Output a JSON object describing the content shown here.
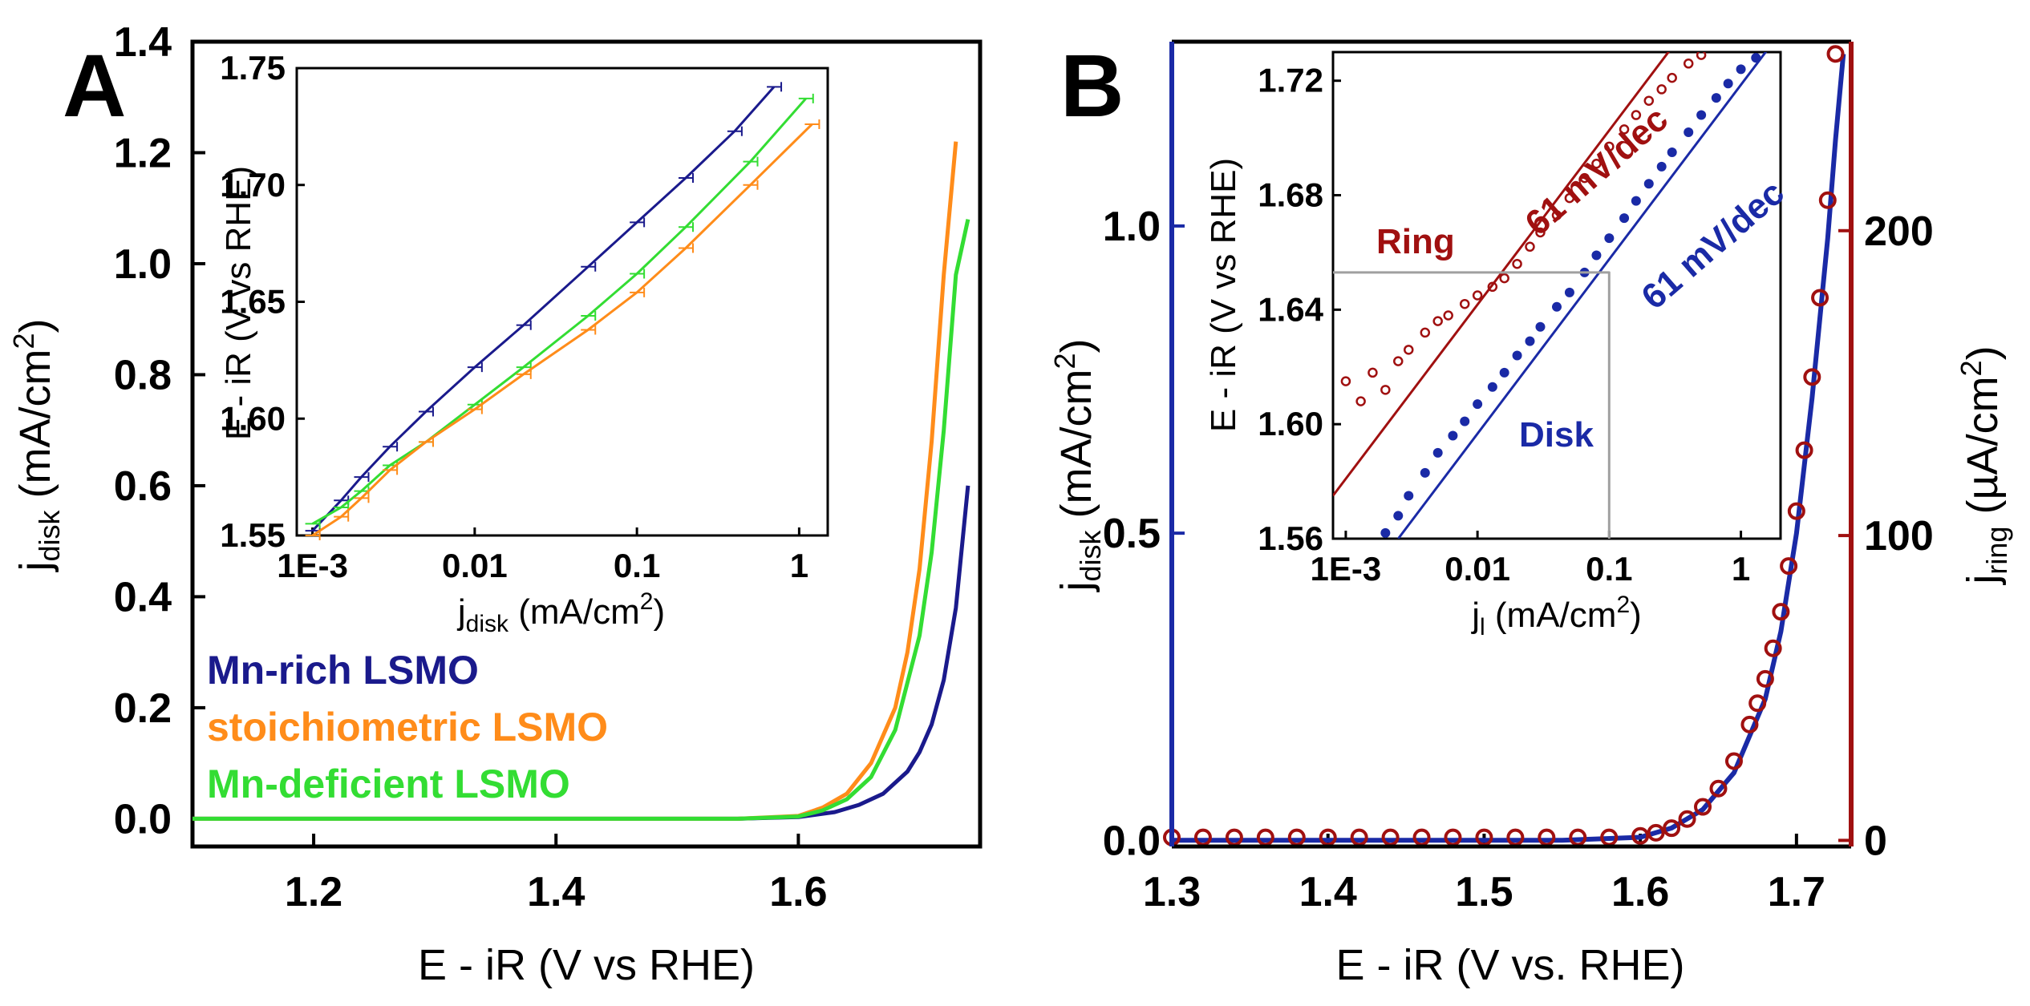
{
  "colors": {
    "mn_rich": "#1a1a8c",
    "stoich": "#ff8c1a",
    "mn_def": "#33dd33",
    "disk": "#1a2aa6",
    "ring": "#a01010",
    "guide": "#a0a0a0",
    "axis": "#000000"
  },
  "panel_a": {
    "label": "A",
    "xlabel": "E - iR (V vs RHE)",
    "ylabel_main": "j",
    "ylabel_sub": "disk",
    "ylabel_unit": " (mA/cm",
    "ylabel_sup": "2",
    "ylabel_close": ")",
    "legend": [
      "Mn-rich LSMO",
      "stoichiometric LSMO",
      "Mn-deficient LSMO"
    ],
    "inset": {
      "xlabel_main": "j",
      "xlabel_sub": "disk",
      "xlabel_unit": " (mA/cm",
      "xlabel_sup": "2",
      "xlabel_close": ")",
      "ylabel": "E - iR (V vs RHE)"
    }
  },
  "panel_b": {
    "label": "B",
    "xlabel": "E - iR (V vs. RHE)",
    "ylabel_left_main": "j",
    "ylabel_left_sub": "disk",
    "ylabel_left_unit": " (mA/cm",
    "ylabel_left_sup": "2",
    "ylabel_left_close": ")",
    "ylabel_right_main": "j",
    "ylabel_right_sub": "ring",
    "ylabel_right_unit": " (µA/cm",
    "ylabel_right_sup": "2",
    "ylabel_right_close": ")",
    "inset": {
      "xlabel_main": "j",
      "xlabel_sub": "l",
      "xlabel_unit": " (mA/cm",
      "xlabel_sup": "2",
      "xlabel_close": ")",
      "ylabel": "E - iR (V vs RHE)",
      "label_ring": "Ring",
      "label_disk": "Disk",
      "slope_ring": "61 mV/dec",
      "slope_disk": "61 mV/dec"
    }
  },
  "chart_data": [
    {
      "id": "A-main",
      "type": "line",
      "title": "",
      "xlabel": "E - iR (V vs RHE)",
      "ylabel": "j_disk (mA/cm^2)",
      "xlim": [
        1.1,
        1.75
      ],
      "ylim": [
        -0.05,
        1.4
      ],
      "xticks": [
        1.2,
        1.4,
        1.6
      ],
      "xtick_labels": [
        "1.2",
        "1.4",
        "1.6"
      ],
      "yticks": [
        0.0,
        0.2,
        0.4,
        0.6,
        0.8,
        1.0,
        1.2,
        1.4
      ],
      "ytick_labels": [
        "0.0",
        "0.2",
        "0.4",
        "0.6",
        "0.8",
        "1.0",
        "1.2",
        "1.4"
      ],
      "legend_position": "bottom-left",
      "series": [
        {
          "name": "Mn-rich LSMO",
          "color_key": "mn_rich",
          "x": [
            1.1,
            1.55,
            1.6,
            1.63,
            1.65,
            1.67,
            1.69,
            1.7,
            1.71,
            1.72,
            1.73,
            1.74
          ],
          "y": [
            0.0,
            0.0,
            0.003,
            0.012,
            0.025,
            0.045,
            0.085,
            0.12,
            0.17,
            0.25,
            0.38,
            0.6
          ]
        },
        {
          "name": "stoichiometric LSMO",
          "color_key": "stoich",
          "x": [
            1.1,
            1.55,
            1.6,
            1.62,
            1.64,
            1.66,
            1.68,
            1.69,
            1.7,
            1.71,
            1.72,
            1.73
          ],
          "y": [
            0.0,
            0.0,
            0.005,
            0.02,
            0.045,
            0.1,
            0.2,
            0.3,
            0.45,
            0.68,
            0.98,
            1.22
          ]
        },
        {
          "name": "Mn-deficient LSMO",
          "color_key": "mn_def",
          "x": [
            1.1,
            1.55,
            1.6,
            1.62,
            1.64,
            1.66,
            1.68,
            1.7,
            1.71,
            1.72,
            1.73,
            1.74
          ],
          "y": [
            0.0,
            0.0,
            0.004,
            0.015,
            0.035,
            0.075,
            0.16,
            0.33,
            0.48,
            0.7,
            0.98,
            1.08
          ]
        }
      ]
    },
    {
      "id": "A-inset",
      "type": "line",
      "title": "",
      "xlabel": "j_disk (mA/cm^2)",
      "ylabel": "E - iR (V vs RHE)",
      "xscale": "log",
      "xlim": [
        0.0008,
        1.5
      ],
      "ylim": [
        1.55,
        1.75
      ],
      "xticks": [
        0.001,
        0.01,
        0.1,
        1
      ],
      "xtick_labels": [
        "1E-3",
        "0.01",
        "0.1",
        "1"
      ],
      "yticks": [
        1.55,
        1.6,
        1.65,
        1.7,
        1.75
      ],
      "ytick_labels": [
        "1.55",
        "1.60",
        "1.65",
        "1.70",
        "1.75"
      ],
      "series": [
        {
          "name": "Mn-rich LSMO",
          "color_key": "mn_rich",
          "x": [
            0.001,
            0.0015,
            0.002,
            0.003,
            0.005,
            0.01,
            0.02,
            0.05,
            0.1,
            0.2,
            0.4,
            0.7
          ],
          "y": [
            1.552,
            1.565,
            1.575,
            1.588,
            1.603,
            1.622,
            1.64,
            1.665,
            1.684,
            1.703,
            1.723,
            1.742
          ]
        },
        {
          "name": "Mn-deficient LSMO",
          "color_key": "mn_def",
          "x": [
            0.001,
            0.0015,
            0.002,
            0.003,
            0.005,
            0.01,
            0.02,
            0.05,
            0.1,
            0.2,
            0.5,
            1.1
          ],
          "y": [
            1.555,
            1.562,
            1.569,
            1.58,
            1.59,
            1.606,
            1.622,
            1.644,
            1.662,
            1.682,
            1.71,
            1.737
          ]
        },
        {
          "name": "stoichiometric LSMO",
          "color_key": "stoich",
          "x": [
            0.001,
            0.0015,
            0.002,
            0.003,
            0.005,
            0.01,
            0.02,
            0.05,
            0.1,
            0.2,
            0.5,
            1.2
          ],
          "y": [
            1.55,
            1.558,
            1.566,
            1.578,
            1.59,
            1.604,
            1.619,
            1.638,
            1.654,
            1.673,
            1.7,
            1.726
          ]
        }
      ]
    },
    {
      "id": "B-main",
      "type": "line",
      "title": "",
      "xlabel": "E - iR (V vs. RHE)",
      "ylabel": "j_disk (mA/cm^2)",
      "ylabel_right": "j_ring (µA/cm^2)",
      "xlim": [
        1.3,
        1.735
      ],
      "ylim": [
        -0.01,
        1.3
      ],
      "ylim_right": [
        -2,
        262
      ],
      "xticks": [
        1.3,
        1.4,
        1.5,
        1.6,
        1.7
      ],
      "xtick_labels": [
        "1.3",
        "1.4",
        "1.5",
        "1.6",
        "1.7"
      ],
      "yticks": [
        0.0,
        0.5,
        1.0
      ],
      "ytick_labels": [
        "0.0",
        "0.5",
        "1.0"
      ],
      "yticks_right": [
        0,
        100,
        200
      ],
      "ytick_labels_right": [
        "0",
        "100",
        "200"
      ],
      "series": [
        {
          "name": "Disk",
          "color_key": "disk",
          "axis": "left",
          "x": [
            1.3,
            1.55,
            1.6,
            1.62,
            1.64,
            1.66,
            1.68,
            1.69,
            1.7,
            1.71,
            1.72,
            1.725,
            1.73
          ],
          "y": [
            0.0,
            0.0,
            0.005,
            0.02,
            0.05,
            0.11,
            0.23,
            0.34,
            0.5,
            0.72,
            0.98,
            1.14,
            1.28
          ]
        },
        {
          "name": "Ring",
          "color_key": "ring",
          "axis": "right",
          "x": [
            1.3,
            1.32,
            1.34,
            1.36,
            1.38,
            1.4,
            1.42,
            1.44,
            1.46,
            1.48,
            1.5,
            1.52,
            1.54,
            1.56,
            1.58,
            1.6,
            1.61,
            1.62,
            1.63,
            1.64,
            1.65,
            1.66,
            1.67,
            1.675,
            1.68,
            1.685,
            1.69,
            1.695,
            1.7,
            1.705,
            1.71,
            1.715,
            1.72,
            1.725
          ],
          "y": [
            1,
            1,
            1,
            1,
            1,
            1,
            1,
            1,
            1,
            1,
            1,
            1,
            1,
            1,
            1,
            1.5,
            2.5,
            4,
            7,
            11,
            17,
            26,
            38,
            45,
            53,
            63,
            75,
            90,
            108,
            128,
            152,
            178,
            210,
            258
          ]
        }
      ]
    },
    {
      "id": "B-inset",
      "type": "scatter",
      "title": "",
      "xlabel": "j_l (mA/cm^2)",
      "ylabel": "E - iR (V vs RHE)",
      "xscale": "log",
      "xlim": [
        0.0008,
        2
      ],
      "ylim": [
        1.56,
        1.73
      ],
      "xticks": [
        0.001,
        0.01,
        0.1,
        1
      ],
      "xtick_labels": [
        "1E-3",
        "0.01",
        "0.1",
        "1"
      ],
      "yticks": [
        1.56,
        1.6,
        1.64,
        1.68,
        1.72
      ],
      "ytick_labels": [
        "1.56",
        "1.60",
        "1.64",
        "1.68",
        "1.72"
      ],
      "annotations": [
        "Ring",
        "Disk",
        "61 mV/dec",
        "61 mV/dec"
      ],
      "series": [
        {
          "name": "Ring",
          "color_key": "ring",
          "marker": "open-circle",
          "x": [
            0.001,
            0.0013,
            0.0016,
            0.002,
            0.0025,
            0.003,
            0.004,
            0.005,
            0.006,
            0.008,
            0.01,
            0.013,
            0.016,
            0.02,
            0.025,
            0.03,
            0.04,
            0.05,
            0.065,
            0.08,
            0.1,
            0.13,
            0.16,
            0.2,
            0.25,
            0.3,
            0.4,
            0.5
          ],
          "y": [
            1.615,
            1.608,
            1.618,
            1.612,
            1.622,
            1.626,
            1.632,
            1.636,
            1.638,
            1.642,
            1.645,
            1.648,
            1.651,
            1.656,
            1.662,
            1.667,
            1.673,
            1.679,
            1.686,
            1.691,
            1.697,
            1.703,
            1.708,
            1.713,
            1.717,
            1.721,
            1.726,
            1.729
          ]
        },
        {
          "name": "Disk",
          "color_key": "disk",
          "marker": "filled-circle",
          "x": [
            0.002,
            0.0025,
            0.003,
            0.004,
            0.005,
            0.0065,
            0.008,
            0.01,
            0.013,
            0.016,
            0.02,
            0.025,
            0.03,
            0.04,
            0.05,
            0.065,
            0.08,
            0.1,
            0.13,
            0.16,
            0.2,
            0.25,
            0.3,
            0.4,
            0.5,
            0.65,
            0.8,
            1.0,
            1.3
          ],
          "y": [
            1.562,
            1.568,
            1.575,
            1.583,
            1.59,
            1.596,
            1.601,
            1.607,
            1.613,
            1.618,
            1.624,
            1.629,
            1.634,
            1.641,
            1.646,
            1.653,
            1.659,
            1.665,
            1.672,
            1.678,
            1.684,
            1.69,
            1.695,
            1.702,
            1.708,
            1.714,
            1.719,
            1.724,
            1.728
          ]
        },
        {
          "name": "Ring fit",
          "color_key": "ring",
          "marker": "none",
          "x": [
            0.0008,
            0.6
          ],
          "y": [
            1.575,
            1.75
          ]
        },
        {
          "name": "Disk fit",
          "color_key": "disk",
          "marker": "none",
          "x": [
            0.0025,
            1.6
          ],
          "y": [
            1.56,
            1.731
          ]
        },
        {
          "name": "Guide",
          "color_key": "guide",
          "marker": "none",
          "x": [
            0.0008,
            0.1,
            0.1
          ],
          "y": [
            1.653,
            1.653,
            1.56
          ]
        }
      ]
    }
  ]
}
